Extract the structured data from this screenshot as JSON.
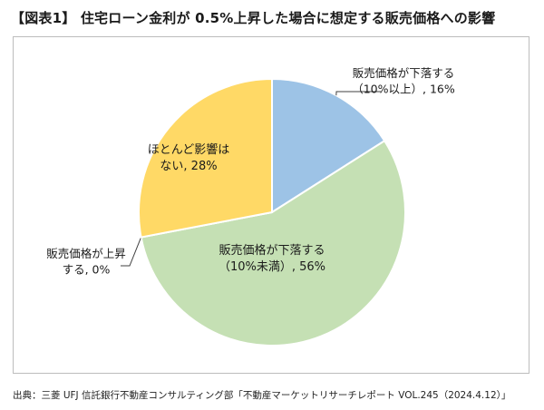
{
  "title": "【図表1】 住宅ローン金利が 0.5%上昇した場合に想定する販売価格への影響",
  "source": "出典：三菱 UFJ 信託銀行不動産コンサルティング部「不動産マーケットリサーチレポート VOL.245（2024.4.12）」",
  "chart_data": {
    "type": "pie",
    "title": "",
    "start_angle_deg": 0,
    "direction": "clockwise",
    "slices": [
      {
        "label_lines": [
          "販売価格が下落する",
          "（10%以上）, 16%"
        ],
        "value": 16,
        "color": "#9dc3e6"
      },
      {
        "label_lines": [
          "販売価格が下落する",
          "（10%未満）, 56%"
        ],
        "value": 56,
        "color": "#c5e0b4"
      },
      {
        "label_lines": [
          "販売価格が上昇",
          "する, 0%"
        ],
        "value": 0,
        "color": "#f4b183"
      },
      {
        "label_lines": [
          "ほとんど影響は",
          "ない, 28%"
        ],
        "value": 28,
        "color": "#ffd966"
      }
    ]
  }
}
